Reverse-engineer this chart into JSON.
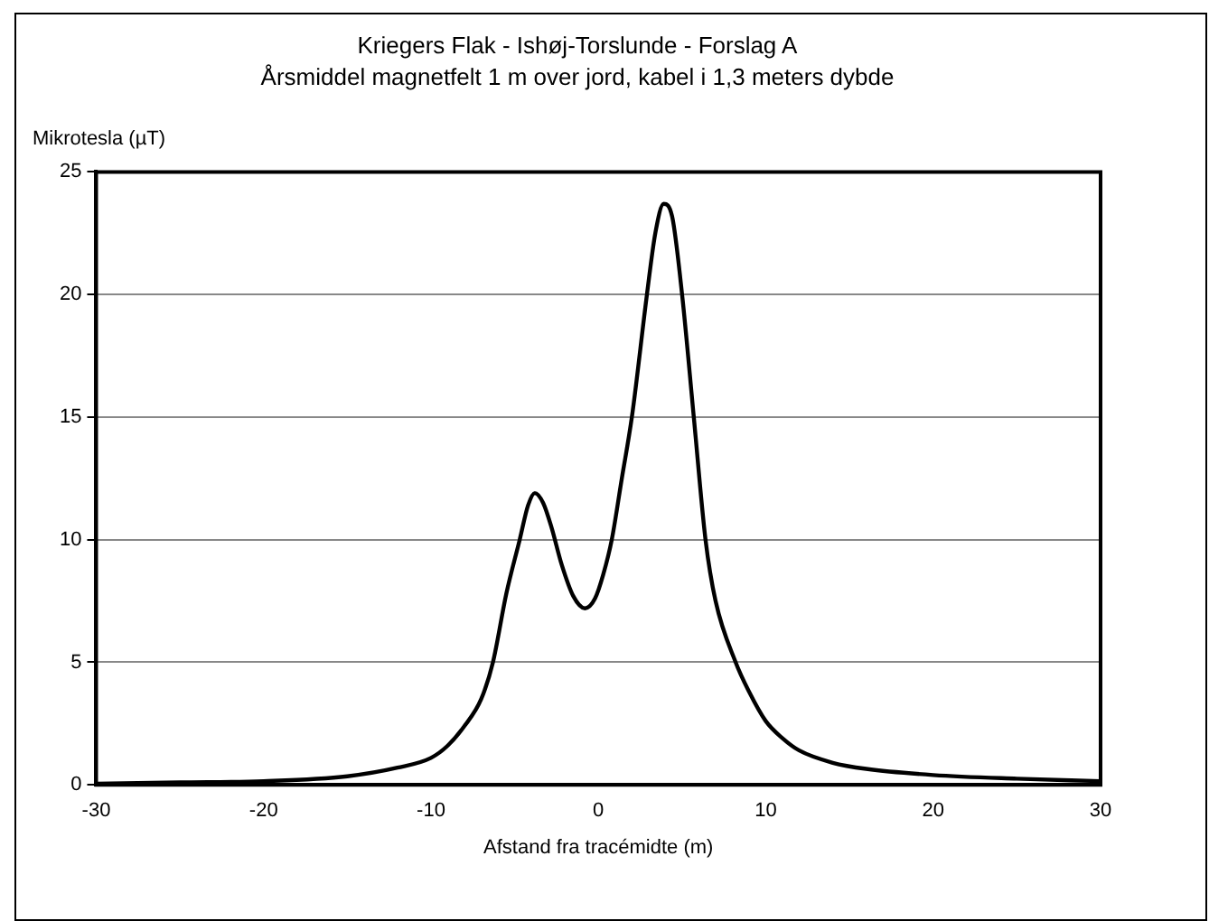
{
  "chart_data": {
    "type": "line",
    "title": "Kriegers Flak - Ishøj-Torslunde - Forslag A",
    "subtitle": "Årsmiddel magnetfelt 1 m over jord, kabel i 1,3 meters dybde",
    "xlabel": "Afstand fra tracémidte (m)",
    "ylabel": "Mikrotesla (µT)",
    "x": [
      -30,
      -25,
      -20,
      -15,
      -12,
      -10,
      -9,
      -8,
      -7,
      -6.3,
      -5.5,
      -4.7,
      -4.2,
      -3.8,
      -3.3,
      -2.8,
      -2.2,
      -1.5,
      -0.8,
      -0.2,
      0.3,
      0.8,
      1.4,
      2,
      2.9,
      3.4,
      3.9,
      4.4,
      5,
      5.7,
      6.4,
      7,
      8.2,
      9,
      10,
      11,
      12,
      14,
      16,
      20,
      25,
      30
    ],
    "series": [
      {
        "color": "#000000",
        "values": [
          0.05,
          0.1,
          0.15,
          0.35,
          0.7,
          1.1,
          1.6,
          2.4,
          3.5,
          5,
          7.8,
          10,
          11.4,
          11.9,
          11.5,
          10.5,
          9,
          7.7,
          7.2,
          7.6,
          8.6,
          10,
          12.5,
          15,
          20,
          22.5,
          23.7,
          23.2,
          20,
          15,
          10,
          7.5,
          5,
          3.8,
          2.6,
          1.9,
          1.4,
          0.9,
          0.65,
          0.4,
          0.25,
          0.15
        ]
      }
    ],
    "xlim": [
      -30,
      30
    ],
    "xticks": [
      -30,
      -20,
      -10,
      0,
      10,
      20,
      30
    ],
    "ylim": [
      0,
      25
    ],
    "yticks": [
      0,
      5,
      10,
      15,
      20,
      25
    ],
    "grid": "y",
    "legend": false,
    "marker": "none",
    "line_style": "solid"
  }
}
